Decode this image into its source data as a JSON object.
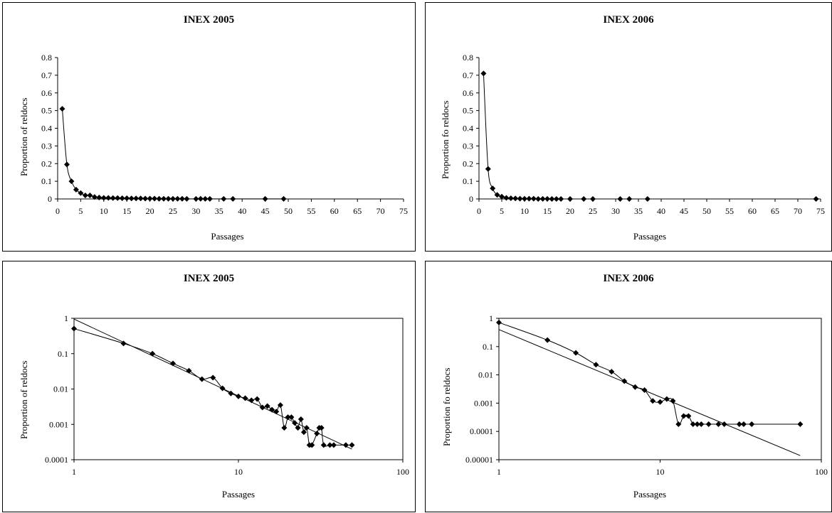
{
  "chart_data": [
    {
      "type": "scatter",
      "scale": "linear",
      "title": "INEX 2005",
      "xlabel": "Passages",
      "ylabel": "Proportion of reldocs",
      "xlim": [
        0,
        75
      ],
      "ylim": [
        0,
        0.8
      ],
      "xticks": [
        "0",
        "5",
        "10",
        "15",
        "20",
        "25",
        "30",
        "35",
        "40",
        "45",
        "50",
        "55",
        "60",
        "65",
        "70",
        "75"
      ],
      "yticks": [
        "0",
        "0.1",
        "0.2",
        "0.3",
        "0.4",
        "0.5",
        "0.6",
        "0.7",
        "0.8"
      ],
      "series": [
        {
          "x": [
            1,
            2,
            3,
            4,
            5,
            6,
            7,
            8,
            9,
            10,
            11,
            12,
            13,
            14,
            15,
            16,
            17,
            18,
            19,
            20,
            21,
            22,
            23,
            24,
            25,
            26,
            27,
            28,
            30,
            31,
            32,
            33,
            36,
            38,
            45,
            49
          ],
          "y": [
            0.51,
            0.195,
            0.1,
            0.053,
            0.033,
            0.02,
            0.02,
            0.011,
            0.008,
            0.006,
            0.006,
            0.005,
            0.005,
            0.004,
            0.004,
            0.003,
            0.003,
            0.003,
            0.002,
            0.002,
            0.002,
            0.001,
            0.001,
            0.001,
            0.001,
            0.0008,
            0.0008,
            0.0006,
            0.0005,
            0.0008,
            0.0003,
            0.0003,
            0.0003,
            0.0003,
            0.0003,
            0.0003
          ]
        }
      ]
    },
    {
      "type": "scatter",
      "scale": "linear",
      "title": "INEX 2006",
      "xlabel": "Passages",
      "ylabel": "Proportion fo reldocs",
      "xlim": [
        0,
        75
      ],
      "ylim": [
        0,
        0.8
      ],
      "xticks": [
        "0",
        "5",
        "10",
        "15",
        "20",
        "25",
        "30",
        "35",
        "40",
        "45",
        "50",
        "55",
        "60",
        "65",
        "70",
        "75"
      ],
      "yticks": [
        "0",
        "0.1",
        "0.2",
        "0.3",
        "0.4",
        "0.5",
        "0.6",
        "0.7",
        "0.8"
      ],
      "series": [
        {
          "x": [
            1,
            2,
            3,
            4,
            5,
            6,
            7,
            8,
            9,
            10,
            11,
            12,
            13,
            14,
            15,
            16,
            17,
            18,
            20,
            23,
            25,
            31,
            33,
            37,
            74
          ],
          "y": [
            0.71,
            0.17,
            0.06,
            0.023,
            0.013,
            0.006,
            0.004,
            0.003,
            0.0013,
            0.0011,
            0.0015,
            0.0013,
            0.0002,
            0.0004,
            0.0004,
            0.0002,
            0.0002,
            0.0002,
            0.0002,
            0.0002,
            0.0002,
            0.0002,
            0.0002,
            0.0002,
            0.0002
          ]
        }
      ]
    },
    {
      "type": "scatter",
      "scale": "log-log",
      "title": "INEX 2005",
      "xlabel": "Passages",
      "ylabel": "Proportion of reldocs",
      "xlim": [
        1,
        100
      ],
      "ylim": [
        0.0001,
        1
      ],
      "xticks": [
        "1",
        "10",
        "100"
      ],
      "yticks": [
        "0.0001",
        "0.001",
        "0.01",
        "0.1",
        "1"
      ],
      "series": [
        {
          "x": [
            1,
            2,
            3,
            4,
            5,
            6,
            7,
            8,
            9,
            10,
            11,
            12,
            13,
            14,
            15,
            16,
            17,
            18,
            19,
            20,
            21,
            22,
            23,
            24,
            25,
            26,
            27,
            28,
            30,
            31,
            32,
            33,
            36,
            38,
            45,
            49
          ],
          "y": [
            0.51,
            0.195,
            0.1,
            0.053,
            0.033,
            0.019,
            0.021,
            0.0105,
            0.0075,
            0.0062,
            0.0055,
            0.0048,
            0.0052,
            0.003,
            0.0033,
            0.0026,
            0.0023,
            0.0035,
            0.0008,
            0.0016,
            0.0016,
            0.0011,
            0.0008,
            0.0014,
            0.0006,
            0.0008,
            0.00026,
            0.00026,
            0.00055,
            0.0008,
            0.0008,
            0.00026,
            0.00026,
            0.00026,
            0.00026,
            0.00026
          ]
        }
      ],
      "trend": {
        "x": [
          1,
          49
        ],
        "y": [
          0.95,
          0.0002
        ]
      }
    },
    {
      "type": "scatter",
      "scale": "log-log",
      "title": "INEX 2006",
      "xlabel": "Passages",
      "ylabel": "Proportion fo reldocs",
      "xlim": [
        1,
        100
      ],
      "ylim": [
        1e-05,
        1
      ],
      "xticks": [
        "1",
        "10",
        "100"
      ],
      "yticks": [
        "0.00001",
        "0.0001",
        "0.001",
        "0.01",
        "0.1",
        "1"
      ],
      "series": [
        {
          "x": [
            1,
            2,
            3,
            4,
            5,
            6,
            7,
            8,
            9,
            10,
            11,
            12,
            13,
            14,
            15,
            16,
            17,
            18,
            20,
            23,
            25,
            31,
            33,
            37,
            74
          ],
          "y": [
            0.71,
            0.17,
            0.06,
            0.023,
            0.013,
            0.006,
            0.0037,
            0.0029,
            0.0012,
            0.0011,
            0.0014,
            0.0012,
            0.00018,
            0.00035,
            0.00035,
            0.00018,
            0.00018,
            0.00018,
            0.00018,
            0.00018,
            0.00018,
            0.00018,
            0.00018,
            0.00018,
            0.00018
          ]
        }
      ],
      "trend": {
        "x": [
          1,
          74
        ],
        "y": [
          0.4,
          1.4e-05
        ]
      }
    }
  ]
}
